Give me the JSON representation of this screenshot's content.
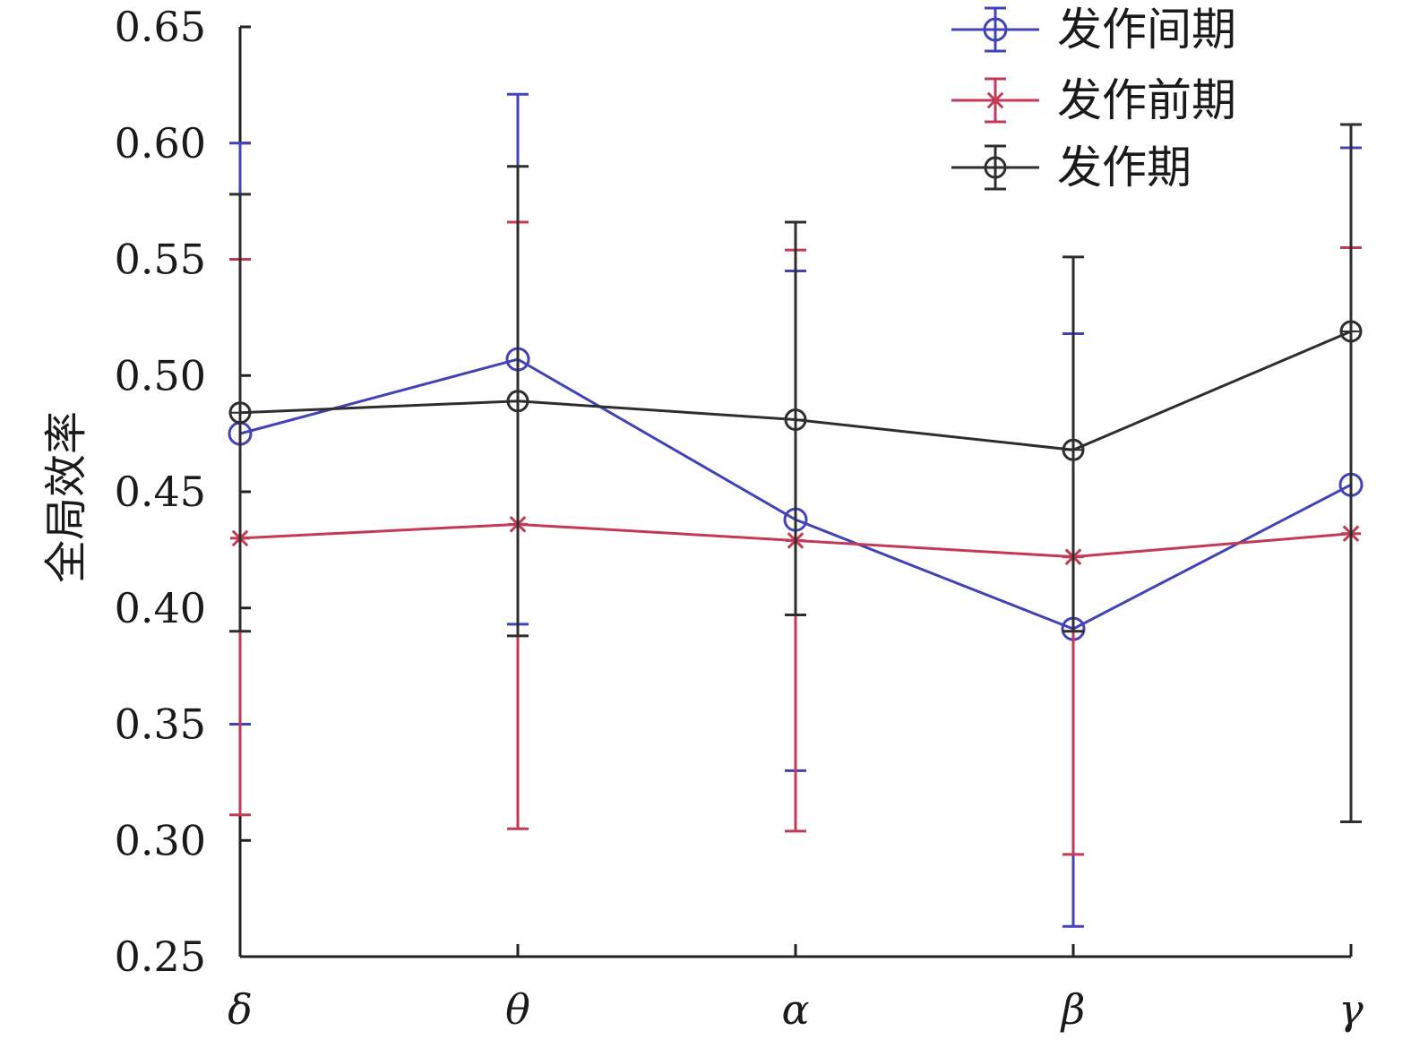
{
  "chart_data": {
    "type": "line",
    "categories": [
      "δ",
      "θ",
      "α",
      "β",
      "γ"
    ],
    "xlabel": "",
    "ylabel": "全局效率",
    "ylim": [
      0.25,
      0.65
    ],
    "yticks": [
      "0.25",
      "0.30",
      "0.35",
      "0.40",
      "0.45",
      "0.50",
      "0.55",
      "0.60",
      "0.65"
    ],
    "grid": false,
    "legend_position": "top-right",
    "series": [
      {
        "name": "发作间期",
        "color": "#4343b8",
        "marker": "circle",
        "values": [
          0.475,
          0.507,
          0.438,
          0.391,
          0.453
        ],
        "err_low": [
          0.35,
          0.393,
          0.33,
          0.263,
          0.308
        ],
        "err_high": [
          0.6,
          0.621,
          0.545,
          0.518,
          0.598
        ]
      },
      {
        "name": "发作前期",
        "color": "#c23a55",
        "marker": "asterisk",
        "values": [
          0.43,
          0.436,
          0.429,
          0.422,
          0.432
        ],
        "err_low": [
          0.311,
          0.305,
          0.304,
          0.294,
          0.308
        ],
        "err_high": [
          0.55,
          0.566,
          0.554,
          0.422,
          0.555
        ]
      },
      {
        "name": "发作期",
        "color": "#2e2e2e",
        "marker": "circle-diamond",
        "values": [
          0.484,
          0.489,
          0.481,
          0.468,
          0.519
        ],
        "err_low": [
          0.39,
          0.388,
          0.397,
          0.39,
          0.308
        ],
        "err_high": [
          0.578,
          0.59,
          0.566,
          0.551,
          0.608
        ]
      }
    ]
  }
}
